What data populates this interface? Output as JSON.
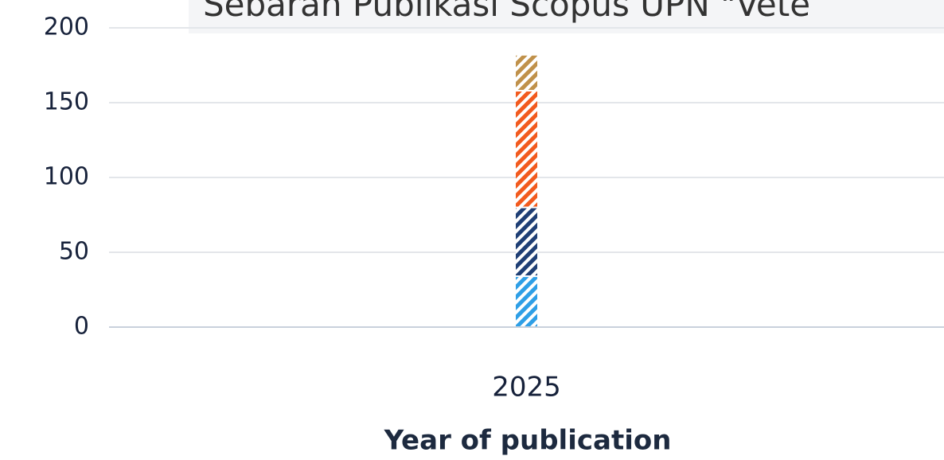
{
  "chart_data": {
    "type": "bar",
    "stacked": true,
    "title": "Sebaran Publikasi Scopus UPN \"Vete",
    "x_label": "Year of publication",
    "categories": [
      "2025"
    ],
    "series": [
      {
        "color": "#2e9fe6",
        "values": [
          34
        ]
      },
      {
        "color": "#1f3f75",
        "values": [
          46
        ]
      },
      {
        "color": "#f25a1e",
        "values": [
          78
        ]
      },
      {
        "color": "#c0914a",
        "values": [
          24
        ]
      }
    ],
    "hatched": true,
    "ylim": [
      0,
      200
    ],
    "yticks": [
      0,
      50,
      100,
      150,
      200
    ],
    "grid": true
  }
}
